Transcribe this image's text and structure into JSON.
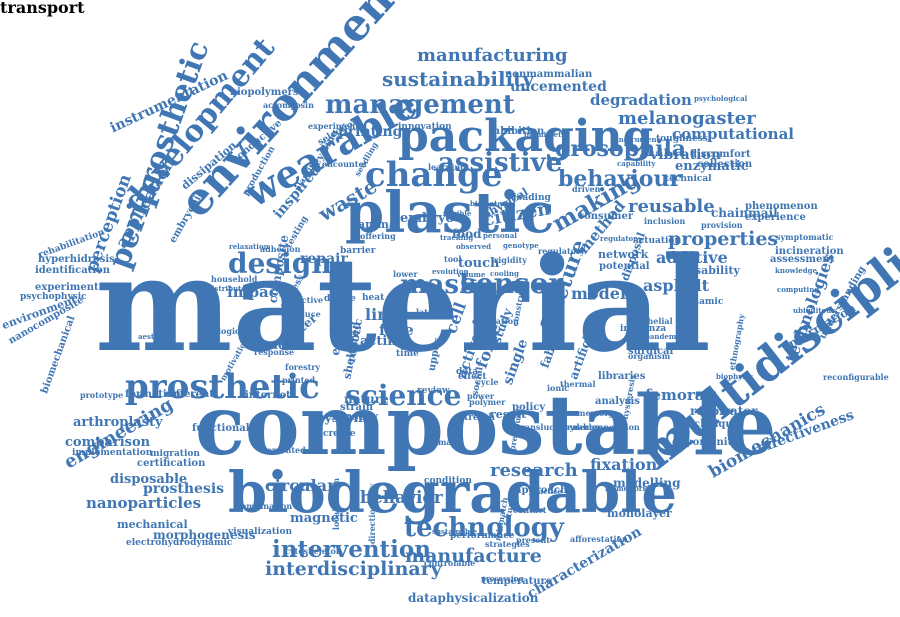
{
  "cloud": {
    "color": "#3f76b3",
    "words": [
      {
        "text": "material",
        "weight": 100
      },
      {
        "text": "compostable",
        "weight": 62
      },
      {
        "text": "biodegradable",
        "weight": 45
      },
      {
        "text": "plastic",
        "weight": 45
      },
      {
        "text": "environmental",
        "weight": 40
      },
      {
        "text": "multidisciplinary",
        "weight": 38
      },
      {
        "text": "packaging",
        "weight": 34
      },
      {
        "text": "wearable",
        "weight": 30
      },
      {
        "text": "prosthetic",
        "weight": 28
      },
      {
        "text": "periprosthetic",
        "weight": 27
      },
      {
        "text": "development",
        "weight": 26
      },
      {
        "text": "change",
        "weight": 27
      },
      {
        "text": "science",
        "weight": 24
      },
      {
        "text": "design",
        "weight": 22
      },
      {
        "text": "management",
        "weight": 24
      },
      {
        "text": "intervention",
        "weight": 20
      },
      {
        "text": "technology",
        "weight": 20
      },
      {
        "text": "assistive",
        "weight": 21
      },
      {
        "text": "sensor",
        "weight": 21
      },
      {
        "text": "mask",
        "weight": 18
      },
      {
        "text": "making",
        "weight": 18
      },
      {
        "text": "behaviour",
        "weight": 17
      },
      {
        "text": "drosophila",
        "weight": 17
      },
      {
        "text": "sustainability",
        "weight": 16
      },
      {
        "text": "manufacturing",
        "weight": 15
      },
      {
        "text": "interdisciplinary",
        "weight": 16
      },
      {
        "text": "manufacture",
        "weight": 16
      },
      {
        "text": "behavior",
        "weight": 15
      },
      {
        "text": "research",
        "weight": 15
      },
      {
        "text": "engineering",
        "weight": 14
      },
      {
        "text": "biomechanics",
        "weight": 14
      },
      {
        "text": "properties",
        "weight": 15
      },
      {
        "text": "reusable",
        "weight": 14
      },
      {
        "text": "fracture",
        "weight": 15
      },
      {
        "text": "citizen",
        "weight": 14
      },
      {
        "text": "waste",
        "weight": 15
      },
      {
        "text": "prosthesis",
        "weight": 13
      },
      {
        "text": "nanoparticles",
        "weight": 13
      },
      {
        "text": "circular",
        "weight": 12
      },
      {
        "text": "magnetic",
        "weight": 11
      },
      {
        "text": "fixation",
        "weight": 12
      },
      {
        "text": "femoral",
        "weight": 12
      },
      {
        "text": "model",
        "weight": 12
      },
      {
        "text": "asphalt",
        "weight": 11
      },
      {
        "text": "additive",
        "weight": 11
      },
      {
        "text": "impact",
        "weight": 11
      },
      {
        "text": "repair",
        "weight": 10
      },
      {
        "text": "perception",
        "weight": 13
      },
      {
        "text": "application",
        "weight": 12
      },
      {
        "text": "instrumentation",
        "weight": 12
      },
      {
        "text": "melanogaster",
        "weight": 13
      },
      {
        "text": "degradation",
        "weight": 12
      },
      {
        "text": "computational",
        "weight": 11
      },
      {
        "text": "vibration",
        "weight": 10
      },
      {
        "text": "enzymatic",
        "weight": 10
      },
      {
        "text": "uncemented",
        "weight": 10
      },
      {
        "text": "printing",
        "weight": 10
      },
      {
        "text": "method",
        "weight": 11
      },
      {
        "text": "technologies",
        "weight": 11
      },
      {
        "text": "characterization",
        "weight": 11
      },
      {
        "text": "effectiveness",
        "weight": 10
      },
      {
        "text": "system",
        "weight": 10
      },
      {
        "text": "arthroplasty",
        "weight": 10
      },
      {
        "text": "comparison",
        "weight": 10
      },
      {
        "text": "disposable",
        "weight": 10
      },
      {
        "text": "morphogenesis",
        "weight": 9
      },
      {
        "text": "dataphysicalization",
        "weight": 9
      },
      {
        "text": "temperature",
        "weight": 8
      },
      {
        "text": "economy",
        "weight": 9
      },
      {
        "text": "nature",
        "weight": 9
      },
      {
        "text": "modelling",
        "weight": 9
      },
      {
        "text": "monolayer",
        "weight": 8
      },
      {
        "text": "respirator",
        "weight": 9
      },
      {
        "text": "chainmail",
        "weight": 9
      },
      {
        "text": "disability",
        "weight": 9
      },
      {
        "text": "network",
        "weight": 9
      },
      {
        "text": "potential",
        "weight": 8
      },
      {
        "text": "phenomenon",
        "weight": 8
      },
      {
        "text": "experience",
        "weight": 8
      },
      {
        "text": "discomfort",
        "weight": 8
      },
      {
        "text": "collection",
        "weight": 8
      },
      {
        "text": "conductive",
        "weight": 8
      },
      {
        "text": "dissipation",
        "weight": 9
      },
      {
        "text": "embryonic",
        "weight": 8
      },
      {
        "text": "nonmammalian",
        "weight": 8
      },
      {
        "text": "biopolymers",
        "weight": 7
      },
      {
        "text": "hyperhidrosis",
        "weight": 7
      },
      {
        "text": "identification",
        "weight": 7
      },
      {
        "text": "experiment",
        "weight": 7
      },
      {
        "text": "environment",
        "weight": 8
      },
      {
        "text": "nanocomposite",
        "weight": 7
      },
      {
        "text": "psychophysic",
        "weight": 6
      },
      {
        "text": "rehabilitation",
        "weight": 6
      },
      {
        "text": "biomechanical",
        "weight": 7
      },
      {
        "text": "mechanical",
        "weight": 8
      },
      {
        "text": "electrohydrodynamic",
        "weight": 7
      },
      {
        "text": "certification",
        "weight": 7
      },
      {
        "text": "implementation",
        "weight": 6
      },
      {
        "text": "migration",
        "weight": 6
      },
      {
        "text": "functional",
        "weight": 7
      },
      {
        "text": "internet",
        "weight": 7
      },
      {
        "text": "formation",
        "weight": 7
      },
      {
        "text": "different",
        "weight": 7
      },
      {
        "text": "prototype",
        "weight": 6
      },
      {
        "text": "visualization",
        "weight": 6
      },
      {
        "text": "cytoskeleton",
        "weight": 6
      },
      {
        "text": "approach",
        "weight": 7
      },
      {
        "text": "condition",
        "weight": 6
      },
      {
        "text": "performance",
        "weight": 6
      },
      {
        "text": "policy",
        "weight": 7
      },
      {
        "text": "analysis",
        "weight": 7
      },
      {
        "text": "technique",
        "weight": 7
      },
      {
        "text": "opportunity",
        "weight": 7
      },
      {
        "text": "surgical",
        "weight": 7
      },
      {
        "text": "influenza",
        "weight": 6
      },
      {
        "text": "epithelial",
        "weight": 6
      },
      {
        "text": "actuation",
        "weight": 6
      },
      {
        "text": "consumer",
        "weight": 7
      },
      {
        "text": "organism",
        "weight": 6
      },
      {
        "text": "cell",
        "weight": 9
      },
      {
        "text": "force",
        "weight": 9
      },
      {
        "text": "active",
        "weight": 8
      },
      {
        "text": "single",
        "weight": 8
      },
      {
        "text": "study",
        "weight": 7
      },
      {
        "text": "liner",
        "weight": 9
      },
      {
        "text": "face",
        "weight": 8
      },
      {
        "text": "actin",
        "weight": 8
      },
      {
        "text": "food",
        "weight": 7
      },
      {
        "text": "embryo",
        "weight": 8
      },
      {
        "text": "animal",
        "weight": 7
      },
      {
        "text": "touch",
        "weight": 8
      },
      {
        "text": "testing",
        "weight": 6
      },
      {
        "text": "sensory",
        "weight": 7
      },
      {
        "text": "strain",
        "weight": 7
      },
      {
        "text": "stretch",
        "weight": 6
      },
      {
        "text": "result",
        "weight": 7
      },
      {
        "text": "sheltered",
        "weight": 6
      },
      {
        "text": "robotic",
        "weight": 6
      },
      {
        "text": "physical",
        "weight": 7
      },
      {
        "text": "loading",
        "weight": 6
      },
      {
        "text": "stiffness",
        "weight": 6
      },
      {
        "text": "inspired",
        "weight": 8
      },
      {
        "text": "composite",
        "weight": 8
      },
      {
        "text": "studies",
        "weight": 7
      },
      {
        "text": "matter",
        "weight": 7
      },
      {
        "text": "fabric",
        "weight": 8
      },
      {
        "text": "artificial",
        "weight": 7
      },
      {
        "text": "selection",
        "weight": 6
      },
      {
        "text": "recycling",
        "weight": 6
      },
      {
        "text": "disposal",
        "weight": 7
      },
      {
        "text": "reconfigurable",
        "weight": 5
      },
      {
        "text": "biophysic",
        "weight": 5
      },
      {
        "text": "ethnography",
        "weight": 5
      },
      {
        "text": "information",
        "weight": 7
      },
      {
        "text": "understanding",
        "weight": 6
      },
      {
        "text": "ubiquitous",
        "weight": 5
      },
      {
        "text": "knowledge",
        "weight": 5
      },
      {
        "text": "assessment",
        "weight": 6
      },
      {
        "text": "incineration",
        "weight": 6
      },
      {
        "text": "symptomatic",
        "weight": 5
      },
      {
        "text": "toughness",
        "weight": 5
      },
      {
        "text": "technical",
        "weight": 5
      },
      {
        "text": "capability",
        "weight": 5
      },
      {
        "text": "instrument",
        "weight": 5
      },
      {
        "text": "psychological",
        "weight": 5
      },
      {
        "text": "innovation",
        "weight": 5
      },
      {
        "text": "inhibition",
        "weight": 5
      },
      {
        "text": "experimental",
        "weight": 5
      },
      {
        "text": "actomyosin",
        "weight": 5
      },
      {
        "text": "production",
        "weight": 5
      },
      {
        "text": "learning",
        "weight": 5
      },
      {
        "text": "dynamic",
        "weight": 6
      },
      {
        "text": "computing",
        "weight": 5
      },
      {
        "text": "hysteresis",
        "weight": 5
      },
      {
        "text": "libraries",
        "weight": 6
      },
      {
        "text": "framework",
        "weight": 5
      },
      {
        "text": "enabler",
        "weight": 5
      },
      {
        "text": "memory",
        "weight": 5
      },
      {
        "text": "review",
        "weight": 6
      },
      {
        "text": "health",
        "weight": 5
      },
      {
        "text": "device",
        "weight": 6
      },
      {
        "text": "heat",
        "weight": 6
      },
      {
        "text": "light",
        "weight": 6
      },
      {
        "text": "cooling",
        "weight": 5
      },
      {
        "text": "volume",
        "weight": 5
      },
      {
        "text": "lower",
        "weight": 5
      },
      {
        "text": "data",
        "weight": 6
      },
      {
        "text": "tool",
        "weight": 6
      },
      {
        "text": "climate",
        "weight": 5
      },
      {
        "text": "polymer",
        "weight": 5
      },
      {
        "text": "increase",
        "weight": 5
      },
      {
        "text": "barrier",
        "weight": 5
      },
      {
        "text": "adhesion",
        "weight": 5
      },
      {
        "text": "reduce",
        "weight": 5
      },
      {
        "text": "aesthetic",
        "weight": 5
      },
      {
        "text": "motivation",
        "weight": 5
      },
      {
        "text": "localization",
        "weight": 5
      },
      {
        "text": "directionality",
        "weight": 5
      },
      {
        "text": "combination",
        "weight": 5
      },
      {
        "text": "cemented",
        "weight": 5
      },
      {
        "text": "controlable",
        "weight": 5
      },
      {
        "text": "strategies",
        "weight": 5
      },
      {
        "text": "processing",
        "weight": 5
      },
      {
        "text": "practice",
        "weight": 5
      },
      {
        "text": "sustainable",
        "weight": 5
      },
      {
        "text": "afforestation",
        "weight": 5
      },
      {
        "text": "flexible",
        "weight": 5
      },
      {
        "text": "tracking",
        "weight": 5
      },
      {
        "text": "personal",
        "weight": 5
      },
      {
        "text": "observed",
        "weight": 5
      },
      {
        "text": "evolution",
        "weight": 5
      },
      {
        "text": "genotype",
        "weight": 5
      },
      {
        "text": "regulator",
        "weight": 5
      },
      {
        "text": "inclusion",
        "weight": 5
      },
      {
        "text": "provision",
        "weight": 5
      },
      {
        "text": "pandemic",
        "weight": 5
      },
      {
        "text": "effect",
        "weight": 6
      },
      {
        "text": "cycle",
        "weight": 5
      },
      {
        "text": "power",
        "weight": 5
      },
      {
        "text": "social",
        "weight": 5
      },
      {
        "text": "upper",
        "weight": 5
      },
      {
        "text": "time",
        "weight": 5
      },
      {
        "text": "forestry",
        "weight": 5
      },
      {
        "text": "effective",
        "weight": 5
      },
      {
        "text": "printed",
        "weight": 5
      },
      {
        "text": "response",
        "weight": 5
      },
      {
        "text": "seedling",
        "weight": 5
      },
      {
        "text": "encounter",
        "weight": 5
      },
      {
        "text": "planting",
        "weight": 5
      },
      {
        "text": "relaxation",
        "weight": 5
      },
      {
        "text": "household",
        "weight": 5
      },
      {
        "text": "offering",
        "weight": 5
      },
      {
        "text": "distributed",
        "weight": 5
      },
      {
        "text": "biological",
        "weight": 5
      },
      {
        "text": "biomimetic",
        "weight": 5
      },
      {
        "text": "biomaterial",
        "weight": 5
      },
      {
        "text": "regulatory",
        "weight": 5
      },
      {
        "text": "evaluation",
        "weight": 5
      },
      {
        "text": "ionic",
        "weight": 5
      },
      {
        "text": "thermal",
        "weight": 5
      },
      {
        "text": "driven",
        "weight": 5
      },
      {
        "text": "decomposition",
        "weight": 5
      },
      {
        "text": "previous",
        "weight": 5
      },
      {
        "text": "translucency",
        "weight": 5
      },
      {
        "text": "deeper",
        "weight": 5
      },
      {
        "text": "mismatch",
        "weight": 5
      },
      {
        "text": "future",
        "weight": 5
      },
      {
        "text": "lateral",
        "weight": 5
      },
      {
        "text": "contact",
        "weight": 5
      },
      {
        "text": "present",
        "weight": 5
      },
      {
        "text": "construct",
        "weight": 5
      },
      {
        "text": "rigidity",
        "weight": 5
      },
      {
        "text": "transport",
        "weight": 5
      }
    ]
  }
}
